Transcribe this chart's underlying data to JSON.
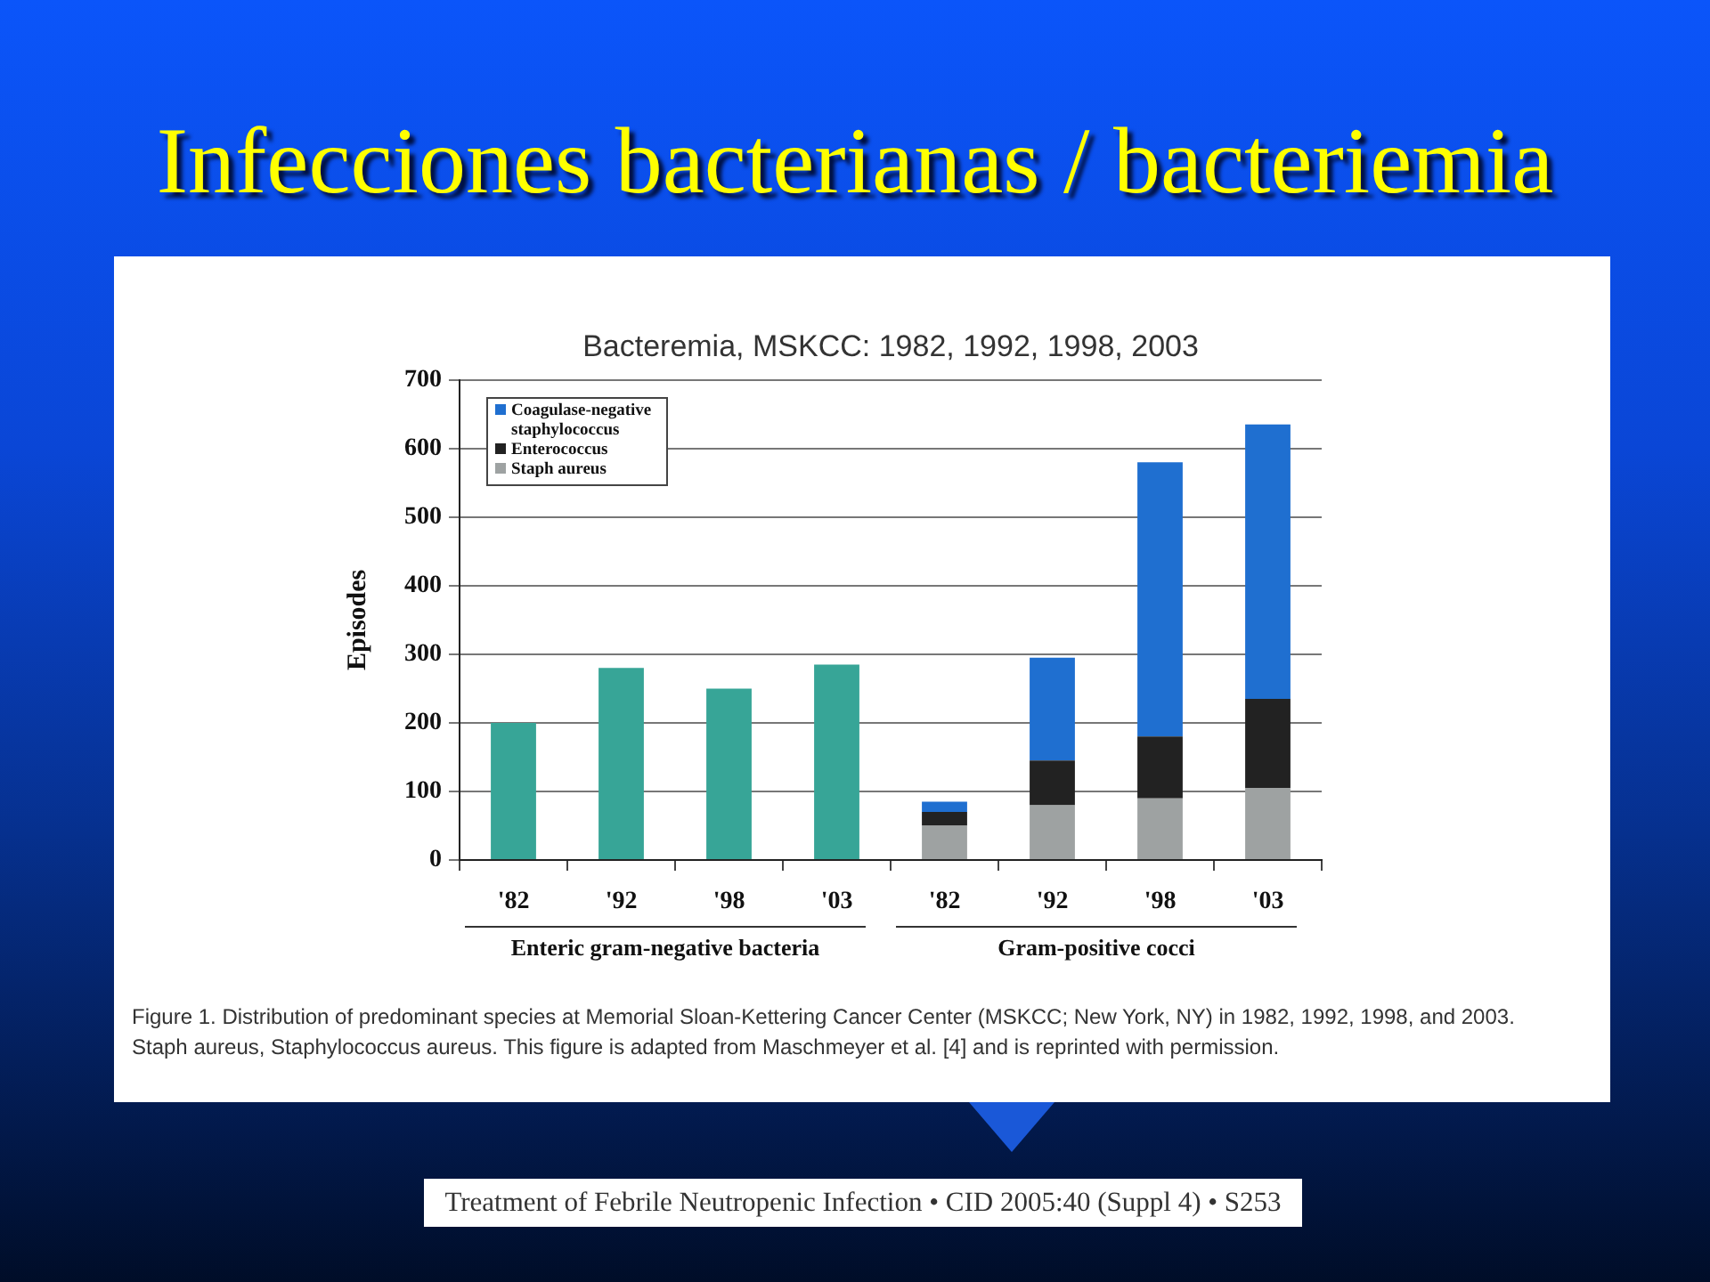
{
  "chart_data": {
    "type": "bar",
    "title": "Infecciones bacterianas / bacteriemia",
    "subtitle": "Bacteremia, MSKCC: 1982, 1992, 1998, 2003",
    "ylabel": "Episodes",
    "categories": [
      "'82",
      "'92",
      "'98",
      "'03",
      "'82",
      "'92",
      "'98",
      "'03"
    ],
    "series": [
      {
        "color": "#37a597",
        "values": [
          200,
          280,
          250,
          285,
          null,
          null,
          null,
          null
        ]
      },
      {
        "name": "Staph aureus",
        "color": "#9ea2a2",
        "values": [
          null,
          null,
          null,
          null,
          50,
          80,
          90,
          105
        ]
      },
      {
        "name": "Enterococcus",
        "color": "#222222",
        "values": [
          null,
          null,
          null,
          null,
          20,
          65,
          90,
          130
        ]
      },
      {
        "name": "Coagulase-negative staphylococcus",
        "color": "#1f6fd0",
        "values": [
          null,
          null,
          null,
          null,
          15,
          150,
          400,
          400
        ]
      }
    ],
    "stacked": true,
    "ylim": [
      0,
      700
    ],
    "yticks": [
      0,
      100,
      200,
      300,
      400,
      500,
      600,
      700
    ],
    "grid": "y",
    "legend": "top left",
    "annotations": [
      "Enteric gram-negative bacteria",
      "Gram-positive cocci",
      "Figure 1. Distribution of predominant species at Memorial Sloan-Kettering Cancer Center (MSKCC; New York, NY) in 1982, 1992, 1998, and 2003. Staph aureus, Staphylococcus aureus. This figure is adapted from Maschmeyer et al. [4] and is reprinted with permission.",
      "Treatment of Febrile Neutropenic Infection • CID 2005:40 (Suppl 4) • S253"
    ]
  }
}
